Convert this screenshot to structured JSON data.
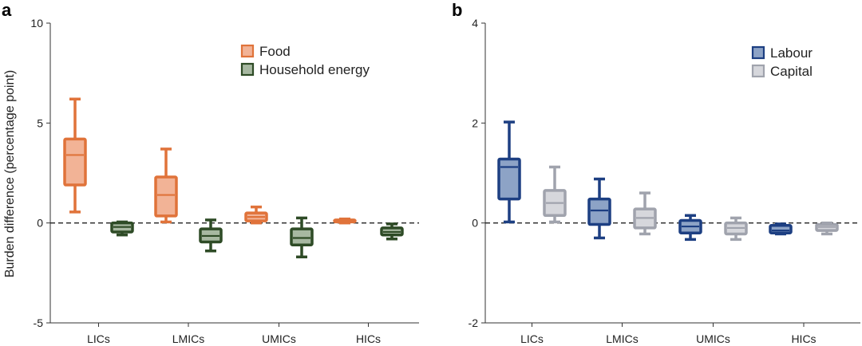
{
  "chart_data": [
    {
      "panel": "a",
      "type": "box",
      "title": "",
      "xlabel": "",
      "ylabel": "Burden difference (percentage point)",
      "ylim": [
        -5,
        10
      ],
      "yticks": [
        -5,
        0,
        5,
        10
      ],
      "categories": [
        "LICs",
        "LMICs",
        "UMICs",
        "HICs"
      ],
      "reference_line": 0,
      "legend_position": "top-right",
      "series": [
        {
          "name": "Food",
          "edge_color": "#E0733A",
          "fill_color": "#F2B396",
          "boxes": [
            {
              "category": "LICs",
              "min": 0.55,
              "q1": 1.9,
              "median": 3.4,
              "q3": 4.2,
              "max": 6.2
            },
            {
              "category": "LMICs",
              "min": 0.05,
              "q1": 0.35,
              "median": 1.4,
              "q3": 2.3,
              "max": 3.7
            },
            {
              "category": "UMICs",
              "min": 0.0,
              "q1": 0.1,
              "median": 0.3,
              "q3": 0.5,
              "max": 0.8
            },
            {
              "category": "HICs",
              "min": 0.0,
              "q1": 0.05,
              "median": 0.1,
              "q3": 0.15,
              "max": 0.2
            }
          ]
        },
        {
          "name": "Household energy",
          "edge_color": "#2E4B26",
          "fill_color": "#A7B8A1",
          "boxes": [
            {
              "category": "LICs",
              "min": -0.6,
              "q1": -0.45,
              "median": -0.2,
              "q3": 0.0,
              "max": 0.05
            },
            {
              "category": "LMICs",
              "min": -1.4,
              "q1": -0.95,
              "median": -0.65,
              "q3": -0.3,
              "max": 0.15
            },
            {
              "category": "UMICs",
              "min": -1.7,
              "q1": -1.1,
              "median": -0.75,
              "q3": -0.3,
              "max": 0.25
            },
            {
              "category": "HICs",
              "min": -0.8,
              "q1": -0.6,
              "median": -0.45,
              "q3": -0.25,
              "max": -0.05
            }
          ]
        }
      ]
    },
    {
      "panel": "b",
      "type": "box",
      "title": "",
      "xlabel": "",
      "ylabel": "",
      "ylim": [
        -2,
        4
      ],
      "yticks": [
        -2,
        0,
        2,
        4
      ],
      "categories": [
        "LICs",
        "LMICs",
        "UMICs",
        "HICs"
      ],
      "reference_line": 0,
      "legend_position": "top-right",
      "series": [
        {
          "name": "Labour",
          "edge_color": "#1D3F82",
          "fill_color": "#8DA3C6",
          "boxes": [
            {
              "category": "LICs",
              "min": 0.02,
              "q1": 0.48,
              "median": 1.12,
              "q3": 1.28,
              "max": 2.02
            },
            {
              "category": "LMICs",
              "min": -0.3,
              "q1": -0.03,
              "median": 0.25,
              "q3": 0.48,
              "max": 0.88
            },
            {
              "category": "UMICs",
              "min": -0.33,
              "q1": -0.2,
              "median": -0.07,
              "q3": 0.05,
              "max": 0.15
            },
            {
              "category": "HICs",
              "min": -0.22,
              "q1": -0.2,
              "median": -0.15,
              "q3": -0.05,
              "max": -0.02
            }
          ]
        },
        {
          "name": "Capital",
          "edge_color": "#A0A3AD",
          "fill_color": "#D6D7DC",
          "boxes": [
            {
              "category": "LICs",
              "min": 0.02,
              "q1": 0.15,
              "median": 0.4,
              "q3": 0.65,
              "max": 1.12
            },
            {
              "category": "LMICs",
              "min": -0.22,
              "q1": -0.1,
              "median": 0.1,
              "q3": 0.28,
              "max": 0.6
            },
            {
              "category": "UMICs",
              "min": -0.33,
              "q1": -0.22,
              "median": -0.1,
              "q3": 0.0,
              "max": 0.1
            },
            {
              "category": "HICs",
              "min": -0.22,
              "q1": -0.15,
              "median": -0.08,
              "q3": -0.03,
              "max": 0.0
            }
          ]
        }
      ]
    }
  ]
}
